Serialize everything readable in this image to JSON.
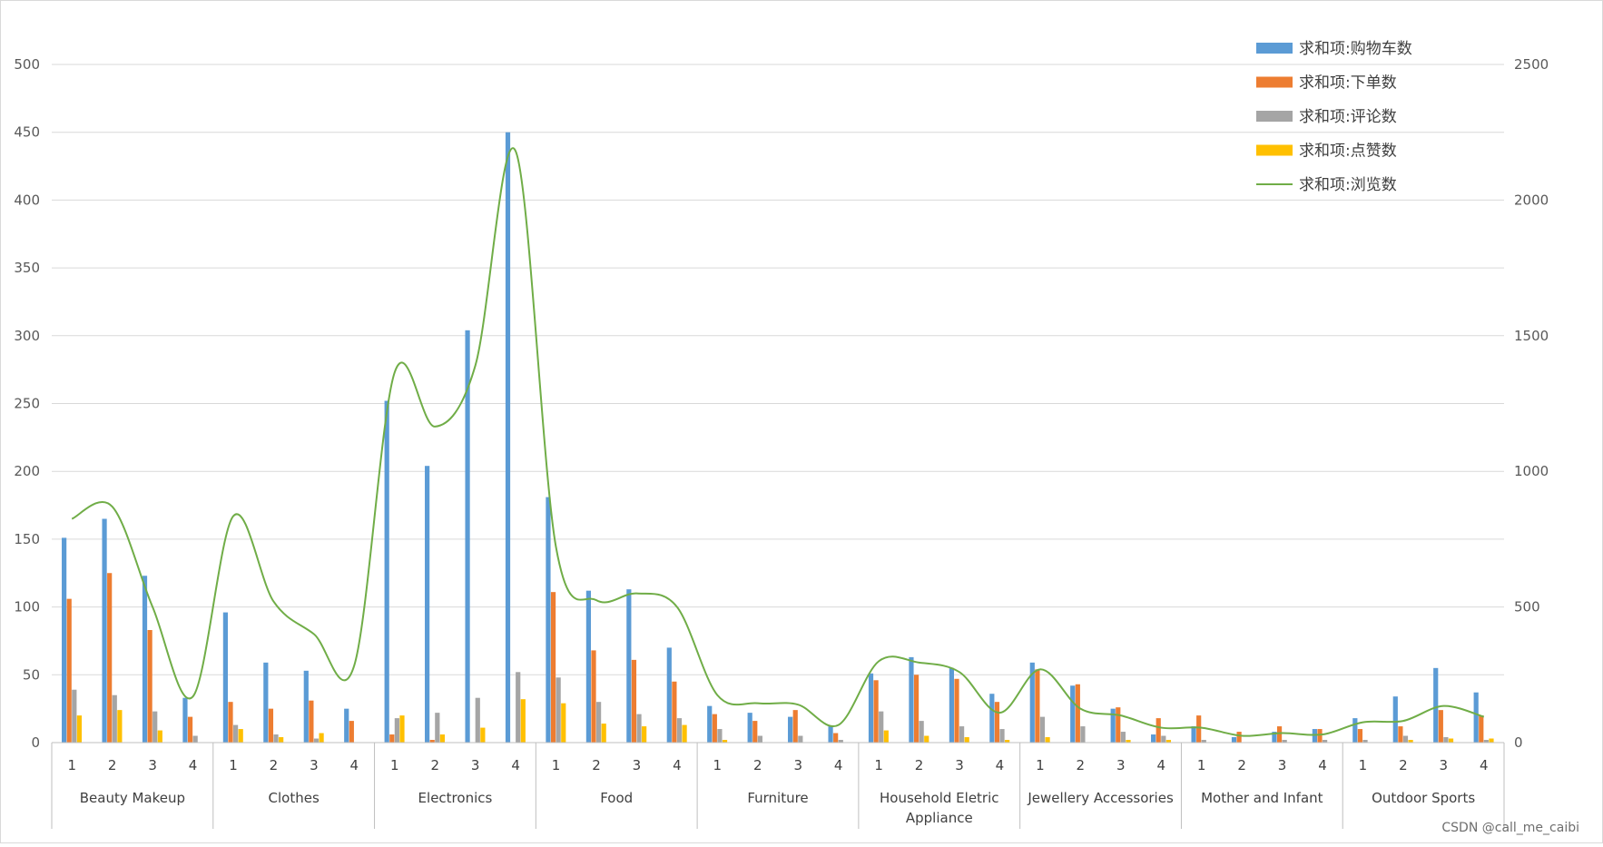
{
  "chart_data": {
    "type": "bar",
    "watermark": "CSDN @call_me_caibi",
    "groups": [
      "Beauty Makeup",
      "Clothes",
      "Electronics",
      "Food",
      "Furniture",
      "Household Eletric Appliance",
      "Jewellery Accessories",
      "Mother and Infant",
      "Outdoor Sports"
    ],
    "subcategories": [
      "1",
      "2",
      "3",
      "4"
    ],
    "y_left": {
      "min": 0,
      "max": 500,
      "ticks": [
        0,
        50,
        100,
        150,
        200,
        250,
        300,
        350,
        400,
        450,
        500
      ]
    },
    "y_right": {
      "min": 0,
      "max": 2500,
      "ticks": [
        0,
        500,
        1000,
        1500,
        2000,
        2500
      ]
    },
    "grid": true,
    "legend_position": "top-right",
    "colors": [
      "#5B9BD5",
      "#ED7D31",
      "#A5A5A5",
      "#FFC000",
      "#70AD47"
    ],
    "series": [
      {
        "name": "求和项:购物车数",
        "kind": "bar",
        "axis": "left",
        "values": [
          151,
          165,
          123,
          33,
          96,
          59,
          53,
          25,
          252,
          204,
          304,
          450,
          181,
          112,
          113,
          70,
          27,
          22,
          19,
          12,
          51,
          63,
          55,
          36,
          59,
          42,
          25,
          6,
          12,
          4,
          8,
          10,
          18,
          34,
          55,
          37
        ]
      },
      {
        "name": "求和项:下单数",
        "kind": "bar",
        "axis": "left",
        "values": [
          106,
          125,
          83,
          19,
          30,
          25,
          31,
          16,
          6,
          2,
          0,
          0,
          111,
          68,
          61,
          45,
          21,
          16,
          24,
          7,
          46,
          50,
          47,
          30,
          54,
          43,
          26,
          18,
          20,
          8,
          12,
          10,
          10,
          12,
          24,
          20
        ]
      },
      {
        "name": "求和项:评论数",
        "kind": "bar",
        "axis": "left",
        "values": [
          39,
          35,
          23,
          5,
          13,
          6,
          3,
          0,
          18,
          22,
          33,
          52,
          48,
          30,
          21,
          18,
          10,
          5,
          5,
          2,
          23,
          16,
          12,
          10,
          19,
          12,
          8,
          5,
          2,
          0,
          2,
          2,
          2,
          5,
          4,
          2
        ]
      },
      {
        "name": "求和项:点赞数",
        "kind": "bar",
        "axis": "left",
        "values": [
          20,
          24,
          9,
          0,
          10,
          4,
          7,
          0,
          20,
          6,
          11,
          32,
          29,
          14,
          12,
          13,
          2,
          0,
          0,
          0,
          9,
          5,
          4,
          2,
          4,
          0,
          2,
          2,
          0,
          0,
          0,
          0,
          0,
          2,
          3,
          3
        ]
      },
      {
        "name": "求和项:浏览数",
        "kind": "line",
        "axis": "right",
        "values": [
          825,
          870,
          500,
          170,
          835,
          520,
          400,
          285,
          1365,
          1165,
          1390,
          2180,
          720,
          525,
          550,
          500,
          175,
          145,
          140,
          65,
          300,
          295,
          260,
          110,
          270,
          125,
          100,
          55,
          55,
          25,
          35,
          30,
          75,
          80,
          135,
          95
        ]
      }
    ]
  }
}
